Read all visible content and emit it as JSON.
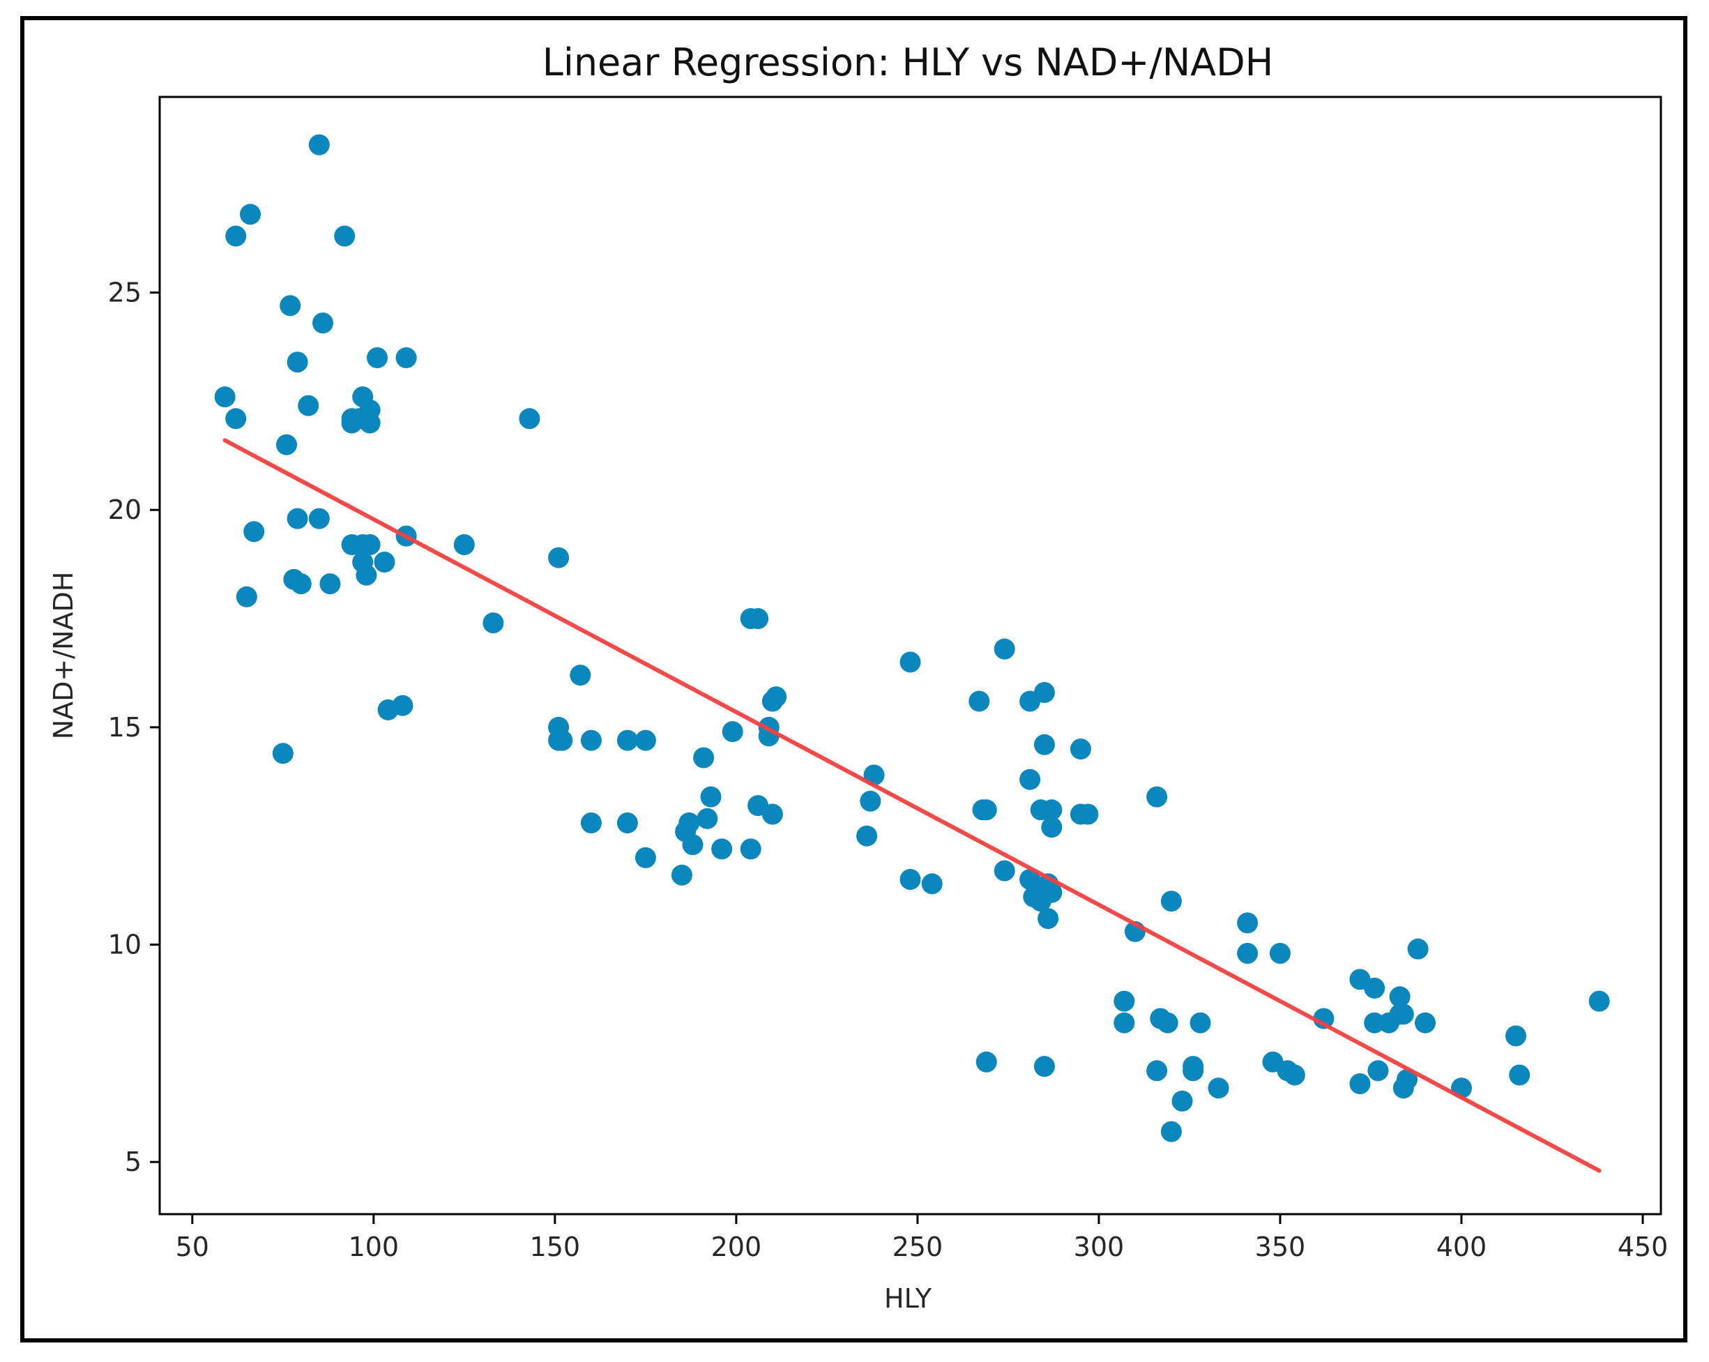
{
  "chart_data": {
    "type": "scatter",
    "title": "Linear Regression: HLY vs NAD+/NADH",
    "xlabel": "HLY",
    "ylabel": "NAD+/NADH",
    "xlim": [
      41,
      455
    ],
    "ylim": [
      3.8,
      29.5
    ],
    "xticks": [
      50,
      100,
      150,
      200,
      250,
      300,
      350,
      400,
      450
    ],
    "yticks": [
      5,
      10,
      15,
      20,
      25
    ],
    "grid": false,
    "point_color": "#0a87bd",
    "line_color": "#f44141",
    "regression_line": {
      "x": [
        59,
        438
      ],
      "y": [
        21.6,
        4.8
      ]
    },
    "points": [
      [
        59,
        22.6
      ],
      [
        62,
        22.1
      ],
      [
        62,
        26.3
      ],
      [
        65,
        18.0
      ],
      [
        66,
        26.8
      ],
      [
        67,
        19.5
      ],
      [
        75,
        14.4
      ],
      [
        76,
        21.5
      ],
      [
        77,
        24.7
      ],
      [
        78,
        18.4
      ],
      [
        79,
        23.4
      ],
      [
        79,
        19.8
      ],
      [
        80,
        18.3
      ],
      [
        82,
        22.4
      ],
      [
        85,
        28.4
      ],
      [
        85,
        19.8
      ],
      [
        86,
        24.3
      ],
      [
        88,
        18.3
      ],
      [
        92,
        26.3
      ],
      [
        94,
        22.0
      ],
      [
        94,
        22.1
      ],
      [
        94,
        19.2
      ],
      [
        96,
        22.1
      ],
      [
        97,
        22.6
      ],
      [
        97,
        19.2
      ],
      [
        97,
        18.8
      ],
      [
        98,
        18.5
      ],
      [
        99,
        22.3
      ],
      [
        99,
        22.0
      ],
      [
        99,
        19.2
      ],
      [
        101,
        23.5
      ],
      [
        103,
        18.8
      ],
      [
        104,
        15.4
      ],
      [
        108,
        15.5
      ],
      [
        109,
        23.5
      ],
      [
        109,
        19.4
      ],
      [
        125,
        19.2
      ],
      [
        133,
        17.4
      ],
      [
        143,
        22.1
      ],
      [
        151,
        18.9
      ],
      [
        151,
        15.0
      ],
      [
        151,
        14.7
      ],
      [
        152,
        14.7
      ],
      [
        157,
        16.2
      ],
      [
        160,
        14.7
      ],
      [
        160,
        12.8
      ],
      [
        170,
        14.7
      ],
      [
        170,
        12.8
      ],
      [
        175,
        14.7
      ],
      [
        175,
        12.0
      ],
      [
        185,
        11.6
      ],
      [
        186,
        12.6
      ],
      [
        187,
        12.8
      ],
      [
        188,
        12.3
      ],
      [
        191,
        14.3
      ],
      [
        192,
        12.9
      ],
      [
        193,
        13.4
      ],
      [
        196,
        12.2
      ],
      [
        199,
        14.9
      ],
      [
        204,
        12.2
      ],
      [
        204,
        17.5
      ],
      [
        206,
        17.5
      ],
      [
        206,
        13.2
      ],
      [
        209,
        15.0
      ],
      [
        209,
        14.8
      ],
      [
        210,
        13.0
      ],
      [
        210,
        15.6
      ],
      [
        211,
        15.7
      ],
      [
        236,
        12.5
      ],
      [
        237,
        13.3
      ],
      [
        238,
        13.9
      ],
      [
        248,
        16.5
      ],
      [
        248,
        11.5
      ],
      [
        254,
        11.4
      ],
      [
        267,
        15.6
      ],
      [
        268,
        13.1
      ],
      [
        269,
        13.1
      ],
      [
        269,
        7.3
      ],
      [
        274,
        16.8
      ],
      [
        274,
        11.7
      ],
      [
        281,
        15.6
      ],
      [
        281,
        13.8
      ],
      [
        281,
        11.5
      ],
      [
        282,
        11.1
      ],
      [
        283,
        11.1
      ],
      [
        284,
        13.1
      ],
      [
        284,
        11.0
      ],
      [
        285,
        15.8
      ],
      [
        285,
        14.6
      ],
      [
        285,
        7.2
      ],
      [
        286,
        10.6
      ],
      [
        286,
        11.4
      ],
      [
        287,
        13.1
      ],
      [
        287,
        12.7
      ],
      [
        287,
        11.2
      ],
      [
        295,
        14.5
      ],
      [
        295,
        13.0
      ],
      [
        297,
        13.0
      ],
      [
        307,
        8.7
      ],
      [
        307,
        8.2
      ],
      [
        310,
        10.3
      ],
      [
        316,
        7.1
      ],
      [
        316,
        13.4
      ],
      [
        317,
        8.3
      ],
      [
        319,
        8.2
      ],
      [
        320,
        11.0
      ],
      [
        320,
        5.7
      ],
      [
        323,
        6.4
      ],
      [
        326,
        7.2
      ],
      [
        326,
        7.1
      ],
      [
        328,
        8.2
      ],
      [
        333,
        6.7
      ],
      [
        341,
        9.8
      ],
      [
        341,
        10.5
      ],
      [
        348,
        7.3
      ],
      [
        350,
        9.8
      ],
      [
        352,
        7.1
      ],
      [
        354,
        7.0
      ],
      [
        362,
        8.3
      ],
      [
        372,
        9.2
      ],
      [
        372,
        6.8
      ],
      [
        376,
        8.2
      ],
      [
        376,
        9.0
      ],
      [
        377,
        7.1
      ],
      [
        380,
        8.2
      ],
      [
        383,
        8.8
      ],
      [
        383,
        8.4
      ],
      [
        384,
        8.4
      ],
      [
        384,
        6.7
      ],
      [
        385,
        6.9
      ],
      [
        388,
        9.9
      ],
      [
        390,
        8.2
      ],
      [
        400,
        6.7
      ],
      [
        415,
        7.9
      ],
      [
        416,
        7.0
      ],
      [
        438,
        8.7
      ]
    ]
  }
}
